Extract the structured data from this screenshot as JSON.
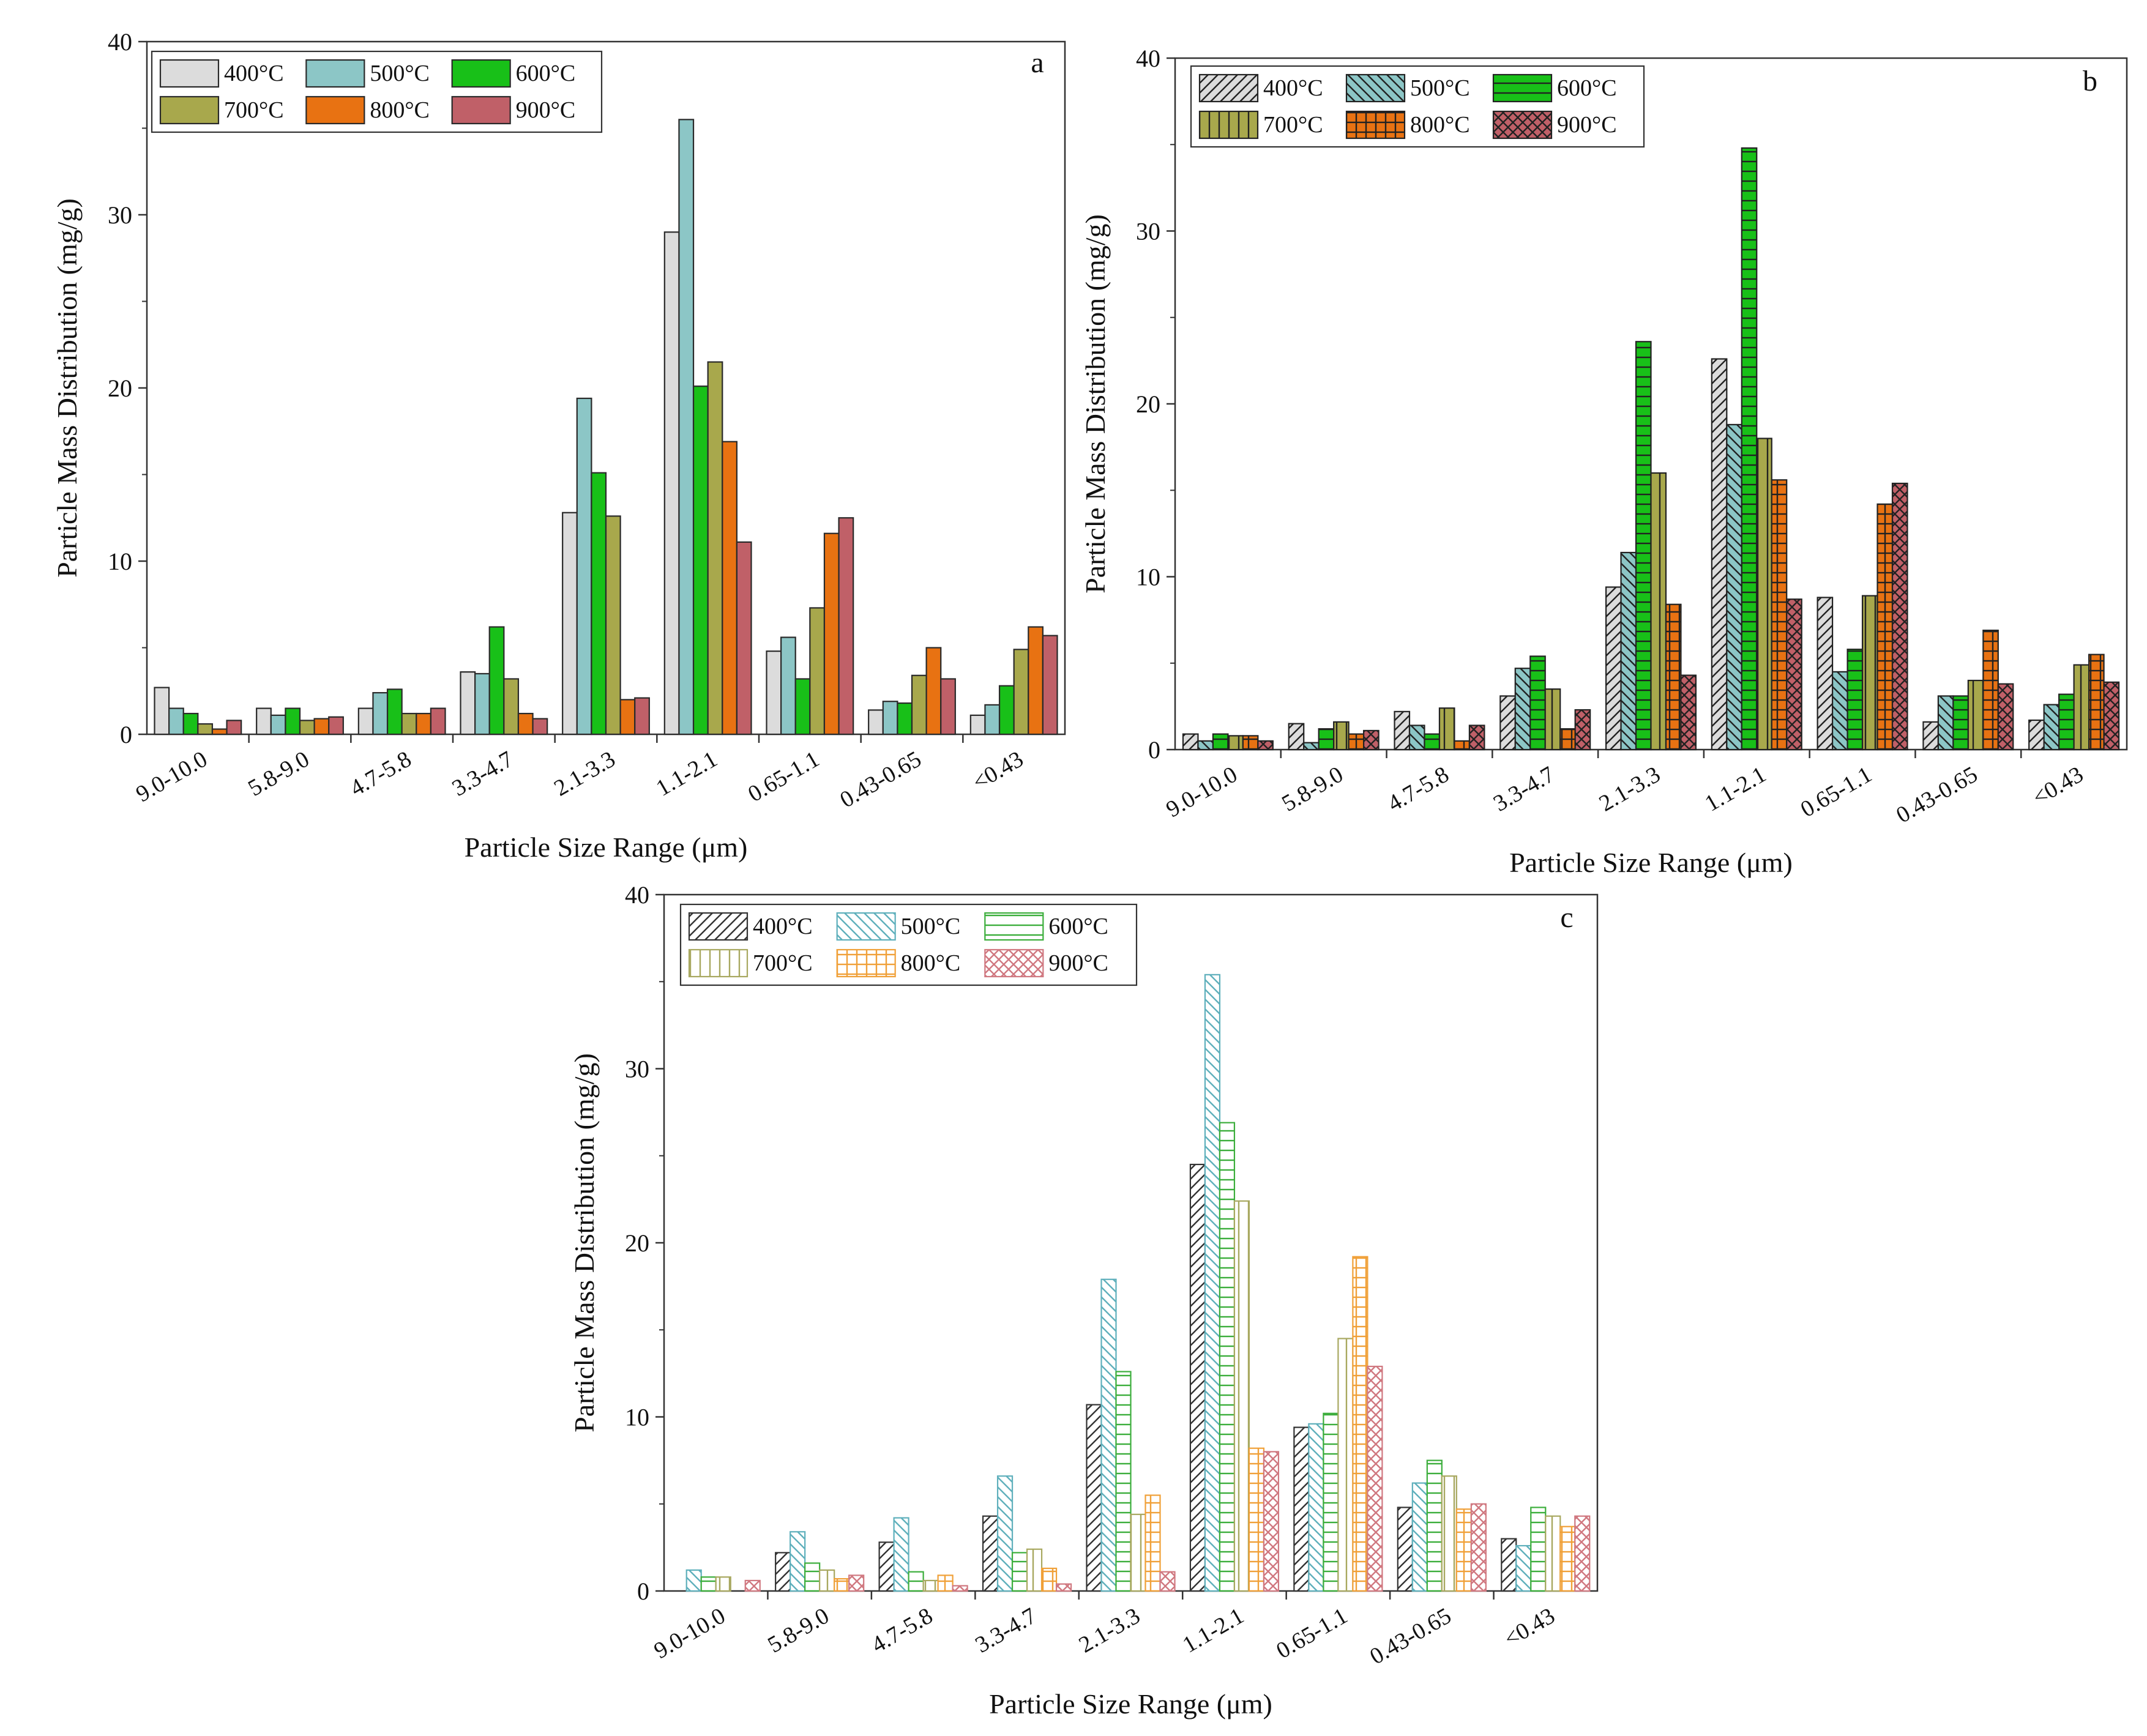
{
  "chart_data": [
    {
      "type": "bar",
      "panel_label": "a",
      "style": "solid",
      "categories": [
        "9.0-10.0",
        "5.8-9.0",
        "4.7-5.8",
        "3.3-4.7",
        "2.1-3.3",
        "1.1-2.1",
        "0.65-1.1",
        "0.43-0.65",
        "<0.43"
      ],
      "xlabel": "Particle Size Range (μm)",
      "ylabel": "Particle Mass Distribution (mg/g)",
      "ylim": [
        0,
        40
      ],
      "yticks": [
        0,
        10,
        20,
        30,
        40
      ],
      "legend_position": "top-left",
      "series": [
        {
          "name": "400°C",
          "color": "#dcdcdc",
          "values": [
            2.7,
            1.5,
            1.5,
            3.6,
            12.8,
            29.0,
            4.8,
            1.4,
            1.1
          ]
        },
        {
          "name": "500°C",
          "color": "#8cc6c6",
          "values": [
            1.5,
            1.1,
            2.4,
            3.5,
            19.4,
            35.5,
            5.6,
            1.9,
            1.7
          ]
        },
        {
          "name": "600°C",
          "color": "#18c018",
          "values": [
            1.2,
            1.5,
            2.6,
            6.2,
            15.1,
            20.1,
            3.2,
            1.8,
            2.8
          ]
        },
        {
          "name": "700°C",
          "color": "#a8a84c",
          "values": [
            0.6,
            0.8,
            1.2,
            3.2,
            12.6,
            21.5,
            7.3,
            3.4,
            4.9
          ]
        },
        {
          "name": "800°C",
          "color": "#e87212",
          "values": [
            0.3,
            0.9,
            1.2,
            1.2,
            2.0,
            16.9,
            11.6,
            5.0,
            6.2
          ]
        },
        {
          "name": "900°C",
          "color": "#c06068",
          "values": [
            0.8,
            1.0,
            1.5,
            0.9,
            2.1,
            11.1,
            12.5,
            3.2,
            5.7
          ]
        }
      ]
    },
    {
      "type": "bar",
      "panel_label": "b",
      "style": "hatched",
      "categories": [
        "9.0-10.0",
        "5.8-9.0",
        "4.7-5.8",
        "3.3-4.7",
        "2.1-3.3",
        "1.1-2.1",
        "0.65-1.1",
        "0.43-0.65",
        "<0.43"
      ],
      "xlabel": "Particle Size Range (μm)",
      "ylabel": "Particle Mass Distribution (mg/g)",
      "ylim": [
        0,
        40
      ],
      "yticks": [
        0,
        10,
        20,
        30,
        40
      ],
      "legend_position": "top-left",
      "series": [
        {
          "name": "400°C",
          "color": "#dcdcdc",
          "hatch": "diag-right",
          "values": [
            0.9,
            1.5,
            2.2,
            3.1,
            9.4,
            22.6,
            8.8,
            1.6,
            1.7
          ]
        },
        {
          "name": "500°C",
          "color": "#8cc6c6",
          "hatch": "diag-left",
          "values": [
            0.5,
            0.4,
            1.4,
            4.7,
            11.4,
            18.8,
            4.5,
            3.1,
            2.6
          ]
        },
        {
          "name": "600°C",
          "color": "#18c018",
          "hatch": "horizontal",
          "values": [
            0.9,
            1.2,
            0.9,
            5.4,
            23.6,
            34.8,
            5.8,
            3.1,
            3.2
          ]
        },
        {
          "name": "700°C",
          "color": "#a8a84c",
          "hatch": "vertical",
          "values": [
            0.8,
            1.6,
            2.4,
            3.5,
            16.0,
            18.0,
            8.9,
            4.0,
            4.9
          ]
        },
        {
          "name": "800°C",
          "color": "#e87212",
          "hatch": "grid",
          "values": [
            0.8,
            0.9,
            0.5,
            1.2,
            8.4,
            15.6,
            14.2,
            6.9,
            5.5
          ]
        },
        {
          "name": "900°C",
          "color": "#c06068",
          "hatch": "crosshatch",
          "values": [
            0.5,
            1.1,
            1.4,
            2.3,
            4.3,
            8.7,
            15.4,
            3.8,
            3.9
          ]
        }
      ]
    },
    {
      "type": "bar",
      "panel_label": "c",
      "style": "outline-hatched",
      "categories": [
        "9.0-10.0",
        "5.8-9.0",
        "4.7-5.8",
        "3.3-4.7",
        "2.1-3.3",
        "1.1-2.1",
        "0.65-1.1",
        "0.43-0.65",
        "<0.43"
      ],
      "xlabel": "Particle Size Range (μm)",
      "ylabel": "Particle Mass Distribution (mg/g)",
      "ylim": [
        0,
        40
      ],
      "yticks": [
        0,
        10,
        20,
        30,
        40
      ],
      "legend_position": "top-left",
      "series": [
        {
          "name": "400°C",
          "color": "#333333",
          "hatch": "diag-right",
          "values": [
            0.0,
            2.2,
            2.8,
            4.3,
            10.7,
            24.5,
            9.4,
            4.8,
            3.0
          ]
        },
        {
          "name": "500°C",
          "color": "#5fb0bc",
          "hatch": "diag-left",
          "values": [
            1.2,
            3.4,
            4.2,
            6.6,
            17.9,
            35.4,
            9.6,
            6.2,
            2.6
          ]
        },
        {
          "name": "600°C",
          "color": "#3cae3c",
          "hatch": "horizontal",
          "values": [
            0.8,
            1.6,
            1.1,
            2.2,
            12.6,
            26.9,
            10.2,
            7.5,
            4.8
          ]
        },
        {
          "name": "700°C",
          "color": "#a8a860",
          "hatch": "vertical",
          "values": [
            0.8,
            1.2,
            0.6,
            2.4,
            4.4,
            22.4,
            14.5,
            6.6,
            4.3
          ]
        },
        {
          "name": "800°C",
          "color": "#f0a038",
          "hatch": "grid",
          "values": [
            0.0,
            0.7,
            0.9,
            1.3,
            5.5,
            8.2,
            19.2,
            4.7,
            3.7
          ]
        },
        {
          "name": "900°C",
          "color": "#d07880",
          "hatch": "crosshatch",
          "values": [
            0.6,
            0.9,
            0.3,
            0.4,
            1.1,
            8.0,
            12.9,
            5.0,
            4.3
          ]
        }
      ]
    }
  ]
}
